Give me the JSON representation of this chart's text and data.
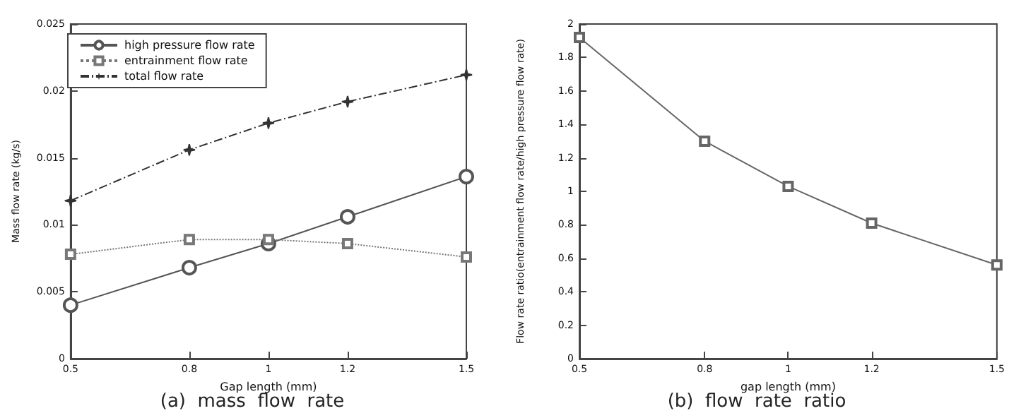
{
  "chart_data": [
    {
      "type": "line",
      "title": "(a)  mass  flow  rate",
      "xlabel": "Gap length (mm)",
      "ylabel": "Mass flow rate (kg/s)",
      "x": [
        0.5,
        0.8,
        1,
        1.2,
        1.5
      ],
      "xlim": [
        0.5,
        1.5
      ],
      "xticks": [
        0.5,
        0.8,
        1,
        1.2,
        1.5
      ],
      "ylim": [
        0,
        0.025
      ],
      "yticks": [
        0,
        0.005,
        0.01,
        0.015,
        0.02,
        0.025
      ],
      "grid": false,
      "legend": "top left",
      "series": [
        {
          "name": "high pressure flow rate",
          "color": "#555555",
          "values": [
            0.004,
            0.0068,
            0.0086,
            0.0106,
            0.0136
          ],
          "marker": "circle",
          "line_style": "solid"
        },
        {
          "name": "entrainment flow rate",
          "color": "#777777",
          "values": [
            0.0078,
            0.0089,
            0.0089,
            0.0086,
            0.0076
          ],
          "marker": "square",
          "line_style": "dotted"
        },
        {
          "name": "total flow rate",
          "color": "#333333",
          "values": [
            0.0118,
            0.0156,
            0.0176,
            0.0192,
            0.0212
          ],
          "marker": "star",
          "line_style": "dashed"
        }
      ]
    },
    {
      "type": "line",
      "title": "(b)  flow  rate  ratio",
      "xlabel": "gap length (mm)",
      "ylabel": "Flow rate ratio(entrainment flow rate/high pressure flow rate)",
      "x": [
        0.5,
        0.8,
        1,
        1.2,
        1.5
      ],
      "xlim": [
        0.5,
        1.5
      ],
      "xticks": [
        0.5,
        0.8,
        1,
        1.2,
        1.5
      ],
      "ylim": [
        0,
        2
      ],
      "yticks": [
        0,
        0.2,
        0.4,
        0.6,
        0.8,
        1,
        1.2,
        1.4,
        1.6,
        1.8,
        2
      ],
      "grid": false,
      "series": [
        {
          "color": "#666666",
          "values": [
            1.92,
            1.3,
            1.03,
            0.81,
            0.56
          ],
          "marker": "square",
          "line_style": "solid"
        }
      ]
    }
  ]
}
